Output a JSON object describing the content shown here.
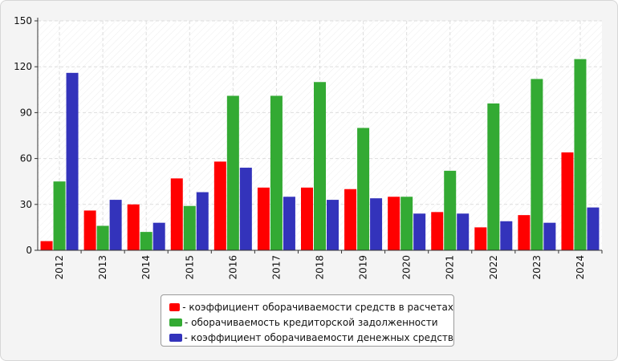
{
  "chart_data": {
    "type": "bar",
    "categories": [
      "2012",
      "2013",
      "2014",
      "2015",
      "2016",
      "2017",
      "2018",
      "2019",
      "2020",
      "2021",
      "2022",
      "2023",
      "2024"
    ],
    "series": [
      {
        "name": "- коэффициент оборачиваемости средств в расчетах",
        "color": "#ff0000",
        "values": [
          6,
          26,
          30,
          47,
          58,
          41,
          41,
          40,
          35,
          25,
          15,
          23,
          64
        ]
      },
      {
        "name": "- оборачиваемость кредиторской задолженности",
        "color": "#33aa33",
        "values": [
          45,
          16,
          12,
          29,
          101,
          101,
          110,
          80,
          35,
          52,
          96,
          112,
          125
        ]
      },
      {
        "name": "- коэффициент оборачиваемости денежных средств",
        "color": "#3333bb",
        "values": [
          116,
          33,
          18,
          38,
          54,
          35,
          33,
          34,
          24,
          24,
          19,
          18,
          28
        ]
      }
    ],
    "yticks": [
      "0",
      "30",
      "60",
      "90",
      "120",
      "150"
    ],
    "ylim": [
      0,
      150
    ],
    "grid": true,
    "legend_position": "bottom-center",
    "title": "",
    "xlabel": "",
    "ylabel": ""
  }
}
